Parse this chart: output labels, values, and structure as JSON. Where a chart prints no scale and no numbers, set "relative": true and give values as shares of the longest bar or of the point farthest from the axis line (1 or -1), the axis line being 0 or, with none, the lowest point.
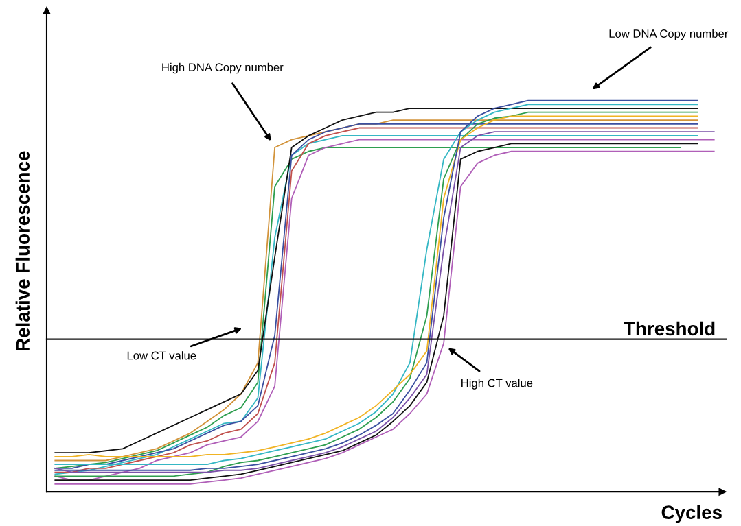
{
  "chart_data": {
    "type": "line",
    "relative": true,
    "xlabel": "Cycles",
    "ylabel": "Relative Fluorescence",
    "tick_labels": false,
    "marker": "none",
    "line_style": "solid",
    "categories": [
      null,
      null,
      null,
      null,
      null,
      null,
      null,
      null,
      null,
      null,
      null,
      null,
      null,
      null,
      null,
      null,
      null,
      null,
      null,
      null,
      null,
      null,
      null,
      null,
      null,
      null,
      null,
      null,
      null,
      null,
      null,
      null,
      null,
      null,
      null,
      null,
      null,
      null,
      null,
      null
    ],
    "series": [
      {
        "color": "#d2933a",
        "values": [
          0.08,
          0.08,
          0.08,
          0.08,
          0.09,
          0.1,
          0.11,
          0.13,
          0.15,
          0.18,
          0.21,
          0.25,
          0.33,
          0.88,
          0.9,
          0.91,
          0.92,
          0.93,
          0.94,
          0.94,
          0.95,
          0.95,
          0.95,
          0.95,
          0.95,
          0.95,
          0.95,
          0.95,
          0.95,
          0.95,
          0.95,
          0.95,
          0.95,
          0.95,
          0.95,
          0.95,
          0.95,
          0.95,
          0.95,
          null
        ]
      },
      {
        "color": "#2e9e4f",
        "values": [
          0.06,
          0.065,
          0.07,
          0.075,
          0.085,
          0.095,
          0.105,
          0.125,
          0.145,
          0.165,
          0.195,
          0.215,
          0.28,
          0.78,
          0.85,
          0.87,
          0.88,
          0.88,
          0.88,
          0.88,
          0.88,
          0.88,
          0.88,
          0.88,
          0.88,
          0.88,
          0.88,
          0.88,
          0.88,
          0.88,
          0.88,
          0.88,
          0.88,
          0.88,
          0.88,
          0.88,
          0.88,
          0.88,
          null,
          null
        ]
      },
      {
        "color": "#35b7c4",
        "values": [
          0.045,
          0.05,
          0.055,
          0.065,
          0.075,
          0.085,
          0.095,
          0.115,
          0.135,
          0.155,
          0.175,
          0.18,
          0.24,
          0.65,
          0.86,
          0.89,
          0.9,
          0.91,
          0.91,
          0.91,
          0.91,
          0.91,
          0.91,
          0.91,
          0.91,
          0.91,
          0.91,
          0.91,
          0.91,
          0.91,
          0.91,
          0.91,
          0.91,
          0.91,
          0.91,
          0.91,
          0.91,
          0.91,
          0.91,
          null
        ]
      },
      {
        "color": "#111111",
        "values": [
          0.1,
          0.1,
          0.1,
          0.105,
          0.11,
          0.13,
          0.15,
          0.17,
          0.19,
          0.21,
          0.23,
          0.25,
          0.31,
          0.6,
          0.88,
          0.91,
          0.93,
          0.95,
          0.96,
          0.97,
          0.97,
          0.98,
          0.98,
          0.98,
          0.98,
          0.98,
          0.98,
          0.98,
          0.98,
          0.98,
          0.98,
          0.98,
          0.98,
          0.98,
          0.98,
          0.98,
          0.98,
          0.98,
          0.98,
          null
        ]
      },
      {
        "color": "#3b4fa0",
        "values": [
          0.06,
          0.06,
          0.07,
          0.07,
          0.08,
          0.09,
          0.1,
          0.11,
          0.13,
          0.15,
          0.17,
          0.18,
          0.22,
          0.4,
          0.86,
          0.9,
          0.92,
          0.93,
          0.94,
          0.94,
          0.94,
          0.94,
          0.94,
          0.94,
          0.94,
          0.94,
          0.94,
          0.94,
          0.94,
          0.94,
          0.94,
          0.94,
          0.94,
          0.94,
          0.94,
          0.94,
          0.94,
          0.94,
          0.94,
          null
        ]
      },
      {
        "color": "#c0504d",
        "values": [
          0.05,
          0.05,
          0.06,
          0.06,
          0.07,
          0.08,
          0.09,
          0.1,
          0.12,
          0.13,
          0.15,
          0.16,
          0.2,
          0.33,
          0.82,
          0.89,
          0.91,
          0.92,
          0.93,
          0.93,
          0.93,
          0.93,
          0.93,
          0.93,
          0.93,
          0.93,
          0.93,
          0.93,
          0.93,
          0.93,
          0.93,
          0.93,
          0.93,
          0.93,
          0.93,
          0.93,
          0.93,
          0.93,
          0.93,
          null
        ]
      },
      {
        "color": "#b05fb8",
        "values": [
          0.04,
          0.03,
          0.03,
          0.04,
          0.05,
          0.06,
          0.08,
          0.09,
          0.1,
          0.12,
          0.13,
          0.14,
          0.18,
          0.27,
          0.75,
          0.86,
          0.88,
          0.89,
          0.9,
          0.9,
          0.9,
          0.9,
          0.9,
          0.9,
          0.9,
          0.9,
          0.9,
          0.9,
          0.9,
          0.9,
          0.9,
          0.9,
          0.9,
          0.9,
          0.9,
          0.9,
          0.9,
          0.9,
          0.9,
          0.9
        ]
      },
      {
        "color": "#35b7c4",
        "values": [
          0.07,
          0.07,
          0.07,
          0.07,
          0.07,
          0.07,
          0.07,
          0.07,
          0.07,
          0.07,
          0.08,
          0.085,
          0.095,
          0.105,
          0.115,
          0.125,
          0.135,
          0.155,
          0.175,
          0.205,
          0.25,
          0.33,
          0.62,
          0.85,
          0.92,
          0.95,
          0.97,
          0.98,
          0.99,
          0.99,
          0.99,
          0.99,
          0.99,
          0.99,
          0.99,
          0.99,
          0.99,
          0.99,
          0.99,
          null
        ]
      },
      {
        "color": "#2e9e4f",
        "values": [
          0.04,
          0.04,
          0.04,
          0.04,
          0.04,
          0.04,
          0.04,
          0.04,
          0.045,
          0.05,
          0.065,
          0.075,
          0.08,
          0.09,
          0.1,
          0.11,
          0.12,
          0.14,
          0.16,
          0.19,
          0.23,
          0.29,
          0.45,
          0.8,
          0.9,
          0.94,
          0.955,
          0.96,
          0.97,
          0.97,
          0.97,
          0.97,
          0.97,
          0.97,
          0.97,
          0.97,
          0.97,
          0.97,
          0.97,
          null
        ]
      },
      {
        "color": "#f0b323",
        "values": [
          0.09,
          0.09,
          0.095,
          0.09,
          0.09,
          0.09,
          0.09,
          0.09,
          0.09,
          0.095,
          0.095,
          0.1,
          0.105,
          0.115,
          0.125,
          0.135,
          0.15,
          0.17,
          0.19,
          0.22,
          0.26,
          0.3,
          0.36,
          0.75,
          0.9,
          0.93,
          0.95,
          0.96,
          0.96,
          0.96,
          0.96,
          0.96,
          0.96,
          0.96,
          0.96,
          0.96,
          0.96,
          0.96,
          0.96,
          null
        ]
      },
      {
        "color": "#3b4fa0",
        "values": [
          0.055,
          0.055,
          0.055,
          0.055,
          0.055,
          0.055,
          0.055,
          0.055,
          0.055,
          0.06,
          0.06,
          0.065,
          0.07,
          0.08,
          0.09,
          0.1,
          0.11,
          0.125,
          0.145,
          0.17,
          0.2,
          0.26,
          0.33,
          0.7,
          0.92,
          0.96,
          0.98,
          0.99,
          1.0,
          1.0,
          1.0,
          1.0,
          1.0,
          1.0,
          1.0,
          1.0,
          1.0,
          1.0,
          1.0,
          null
        ]
      },
      {
        "color": "#7b52a8",
        "values": [
          0.06,
          0.05,
          0.05,
          0.05,
          0.05,
          0.05,
          0.05,
          0.05,
          0.05,
          0.05,
          0.055,
          0.055,
          0.06,
          0.07,
          0.08,
          0.09,
          0.1,
          0.115,
          0.135,
          0.155,
          0.19,
          0.24,
          0.3,
          0.62,
          0.88,
          0.91,
          0.92,
          0.92,
          0.92,
          0.92,
          0.92,
          0.92,
          0.92,
          0.92,
          0.92,
          0.92,
          0.92,
          0.92,
          0.92,
          0.92
        ]
      },
      {
        "color": "#111111",
        "values": [
          0.03,
          0.03,
          0.03,
          0.03,
          0.03,
          0.03,
          0.03,
          0.03,
          0.03,
          0.035,
          0.04,
          0.045,
          0.055,
          0.065,
          0.075,
          0.085,
          0.095,
          0.105,
          0.125,
          0.145,
          0.18,
          0.22,
          0.28,
          0.45,
          0.85,
          0.87,
          0.88,
          0.89,
          0.89,
          0.89,
          0.89,
          0.89,
          0.89,
          0.89,
          0.89,
          0.89,
          0.89,
          0.89,
          0.89,
          null
        ]
      },
      {
        "color": "#b05fb8",
        "values": [
          0.02,
          0.02,
          0.02,
          0.02,
          0.02,
          0.02,
          0.02,
          0.02,
          0.02,
          0.025,
          0.03,
          0.035,
          0.045,
          0.055,
          0.065,
          0.075,
          0.085,
          0.1,
          0.12,
          0.14,
          0.16,
          0.2,
          0.25,
          0.38,
          0.78,
          0.84,
          0.86,
          0.87,
          0.87,
          0.87,
          0.87,
          0.87,
          0.87,
          0.87,
          0.87,
          0.87,
          0.87,
          0.87,
          0.87,
          0.87
        ]
      }
    ],
    "ref_lines": [
      {
        "axis": "y",
        "value": 0.39,
        "label": "Threshold",
        "color": "#111111"
      }
    ],
    "annotations": [
      "High DNA Copy number",
      "Low DNA Copy number",
      "Low CT value",
      "High CT value"
    ]
  }
}
